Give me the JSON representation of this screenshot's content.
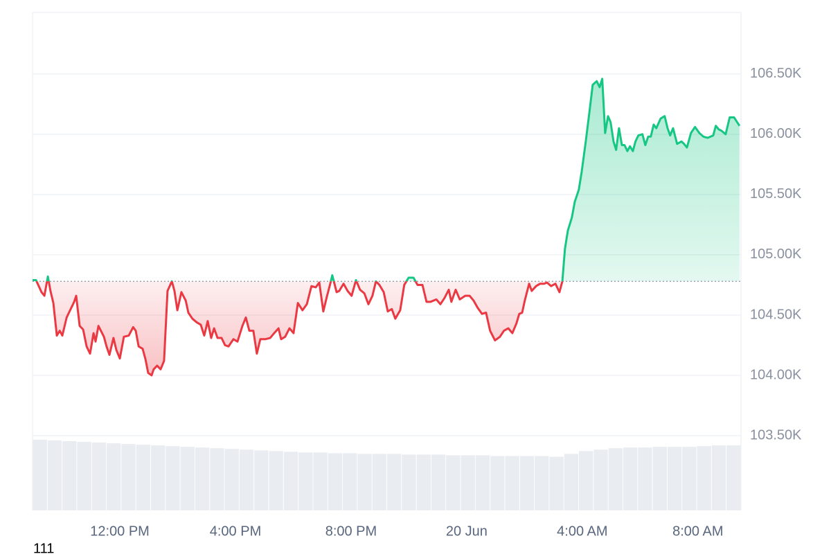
{
  "chart_data": {
    "type": "line",
    "note": "111",
    "baseline": 104780,
    "up_color": "#16c784",
    "down_color": "#ea3943",
    "grid": true,
    "xlim": [
      8.98,
      33.49
    ],
    "xticks": [
      {
        "value": 12,
        "label": "12:00 PM"
      },
      {
        "value": 16,
        "label": "4:00 PM"
      },
      {
        "value": 20,
        "label": "8:00 PM"
      },
      {
        "value": 24,
        "label": "20 Jun"
      },
      {
        "value": 28,
        "label": "4:00 AM"
      },
      {
        "value": 32,
        "label": "8:00 AM"
      }
    ],
    "ylim": [
      102880,
      107010
    ],
    "yticks": [
      {
        "value": 103500,
        "label": "103.50K"
      },
      {
        "value": 104000,
        "label": "104.00K"
      },
      {
        "value": 104500,
        "label": "104.50K"
      },
      {
        "value": 105000,
        "label": "105.00K"
      },
      {
        "value": 105500,
        "label": "105.50K"
      },
      {
        "value": 106000,
        "label": "106.00K"
      },
      {
        "value": 106500,
        "label": "106.50K"
      }
    ],
    "x": [
      8.98,
      9.1,
      9.29,
      9.39,
      9.51,
      9.6,
      9.7,
      9.82,
      9.92,
      10.01,
      10.16,
      10.28,
      10.42,
      10.49,
      10.61,
      10.73,
      10.85,
      10.97,
      11.09,
      11.16,
      11.26,
      11.45,
      11.54,
      11.64,
      11.78,
      11.88,
      12.0,
      12.14,
      12.31,
      12.46,
      12.55,
      12.65,
      12.79,
      12.89,
      12.98,
      13.1,
      13.17,
      13.29,
      13.41,
      13.53,
      13.65,
      13.8,
      13.89,
      13.99,
      14.13,
      14.28,
      14.37,
      14.51,
      14.66,
      14.8,
      14.92,
      15.04,
      15.16,
      15.26,
      15.38,
      15.52,
      15.64,
      15.76,
      15.93,
      16.07,
      16.24,
      16.36,
      16.48,
      16.62,
      16.74,
      16.86,
      17.03,
      17.2,
      17.34,
      17.49,
      17.58,
      17.72,
      17.87,
      18.01,
      18.16,
      18.32,
      18.47,
      18.63,
      18.78,
      18.9,
      19.04,
      19.16,
      19.28,
      19.35,
      19.5,
      19.59,
      19.74,
      19.88,
      20.02,
      20.17,
      20.31,
      20.46,
      20.6,
      20.74,
      20.86,
      20.98,
      21.13,
      21.27,
      21.41,
      21.53,
      21.7,
      21.84,
      21.99,
      22.16,
      22.3,
      22.47,
      22.61,
      22.75,
      22.95,
      23.09,
      23.23,
      23.38,
      23.47,
      23.62,
      23.76,
      23.95,
      24.1,
      24.24,
      24.38,
      24.53,
      24.67,
      24.81,
      24.98,
      25.15,
      25.29,
      25.44,
      25.58,
      25.72,
      25.82,
      25.92,
      26.01,
      26.16,
      26.25,
      26.4,
      26.54,
      26.68,
      26.78,
      26.92,
      27.07,
      27.21,
      27.31,
      27.4,
      27.5,
      27.64,
      27.74,
      27.88,
      27.98,
      28.12,
      28.26,
      28.36,
      28.5,
      28.6,
      28.69,
      28.79,
      28.89,
      28.98,
      29.08,
      29.17,
      29.27,
      29.37,
      29.46,
      29.56,
      29.65,
      29.75,
      29.84,
      29.94,
      30.08,
      30.18,
      30.28,
      30.37,
      30.47,
      30.56,
      30.71,
      30.85,
      30.95,
      31.04,
      31.14,
      31.28,
      31.43,
      31.52,
      31.62,
      31.76,
      31.9,
      32.05,
      32.19,
      32.34,
      32.53,
      32.62,
      32.72,
      32.81,
      32.96,
      33.1,
      33.25,
      33.44
    ],
    "values": [
      104790,
      104790,
      104690,
      104660,
      104820,
      104700,
      104600,
      104330,
      104370,
      104330,
      104480,
      104540,
      104610,
      104660,
      104410,
      104380,
      104240,
      104180,
      104350,
      104280,
      104410,
      104320,
      104240,
      104170,
      104310,
      104210,
      104140,
      104320,
      104330,
      104400,
      104370,
      104240,
      104220,
      104130,
      104020,
      104000,
      104050,
      104080,
      104050,
      104120,
      104700,
      104780,
      104700,
      104540,
      104690,
      104620,
      104520,
      104470,
      104440,
      104420,
      104330,
      104450,
      104310,
      104390,
      104310,
      104310,
      104250,
      104240,
      104300,
      104280,
      104410,
      104480,
      104370,
      104370,
      104180,
      104300,
      104300,
      104310,
      104350,
      104390,
      104300,
      104320,
      104390,
      104350,
      104600,
      104540,
      104590,
      104740,
      104730,
      104770,
      104530,
      104650,
      104760,
      104830,
      104690,
      104700,
      104760,
      104700,
      104660,
      104790,
      104710,
      104680,
      104590,
      104660,
      104780,
      104750,
      104690,
      104530,
      104550,
      104470,
      104540,
      104750,
      104810,
      104810,
      104750,
      104750,
      104610,
      104610,
      104630,
      104590,
      104640,
      104710,
      104610,
      104710,
      104630,
      104660,
      104660,
      104620,
      104560,
      104510,
      104520,
      104370,
      104290,
      104320,
      104370,
      104390,
      104350,
      104430,
      104510,
      104520,
      104620,
      104760,
      104700,
      104740,
      104760,
      104760,
      104770,
      104740,
      104760,
      104690,
      104780,
      105050,
      105200,
      105310,
      105440,
      105540,
      105690,
      105940,
      106210,
      106410,
      106440,
      106390,
      106460,
      106010,
      106150,
      106100,
      105940,
      105870,
      106050,
      105910,
      105910,
      105860,
      105900,
      105860,
      105940,
      105990,
      106000,
      105910,
      105980,
      105980,
      106080,
      106050,
      106130,
      106150,
      106050,
      105990,
      106050,
      105920,
      105940,
      105920,
      105890,
      106010,
      106060,
      106010,
      105980,
      105970,
      105990,
      106070,
      106040,
      106030,
      106000,
      106140,
      106140,
      106070
    ],
    "volume": {
      "color": "#e9ecf0",
      "values": [
        100,
        99,
        98,
        97,
        96,
        95,
        94,
        93,
        92,
        91,
        90,
        89,
        88,
        87,
        86,
        85,
        84,
        83,
        82,
        82,
        81,
        81,
        80,
        80,
        80,
        79,
        79,
        79,
        78,
        78,
        78,
        77,
        77,
        77,
        77,
        76,
        80,
        84,
        86,
        88,
        89,
        89,
        90,
        90,
        90,
        91,
        92,
        92
      ]
    }
  }
}
